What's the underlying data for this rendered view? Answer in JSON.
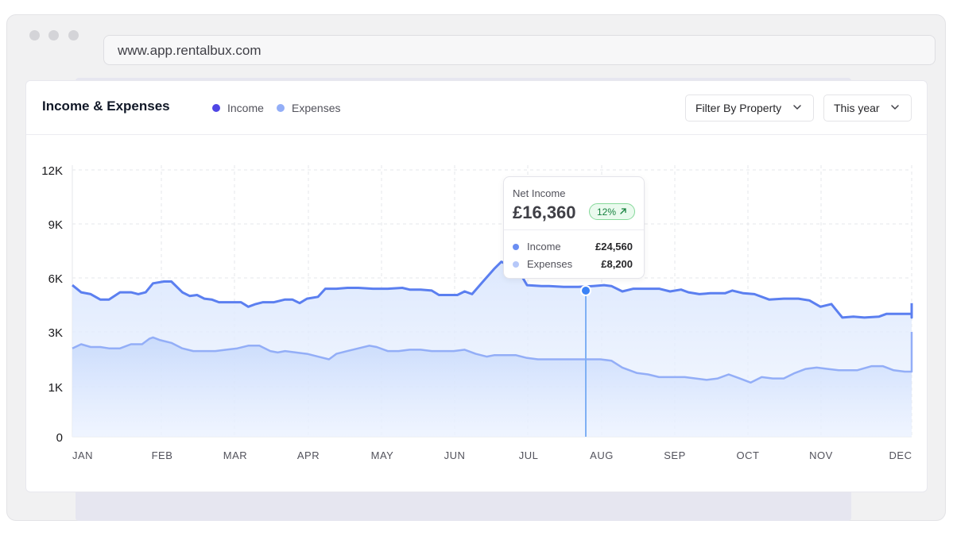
{
  "browser": {
    "url": "www.app.rentalbux.com"
  },
  "card": {
    "title": "Income & Expenses",
    "legend": [
      {
        "label": "Income",
        "color": "#4f46e5"
      },
      {
        "label": "Expenses",
        "color": "#93aef7"
      }
    ],
    "filter_property": "Filter By Property",
    "period": "This year"
  },
  "tooltip": {
    "label": "Net Income",
    "value": "£16,360",
    "change": "12%",
    "income_label": "Income",
    "income_value": "£24,560",
    "expenses_label": "Expenses",
    "expenses_value": "£8,200"
  },
  "chart_data": {
    "type": "area",
    "y_ticks": [
      "0",
      "1K",
      "3K",
      "6K",
      "9K",
      "12K"
    ],
    "x_ticks": [
      "JAN",
      "FEB",
      "MAR",
      "APR",
      "MAY",
      "JUN",
      "JUL",
      "AUG",
      "SEP",
      "OCT",
      "NOV",
      "DEC"
    ],
    "grid": true,
    "highlight_month": 7.35,
    "series": [
      {
        "name": "Income",
        "color": "#5b7ff0",
        "points": [
          [
            0,
            5600
          ],
          [
            0.12,
            5200
          ],
          [
            0.25,
            5100
          ],
          [
            0.38,
            4800
          ],
          [
            0.5,
            4800
          ],
          [
            0.65,
            5200
          ],
          [
            0.8,
            5200
          ],
          [
            0.9,
            5100
          ],
          [
            1.0,
            5200
          ],
          [
            1.1,
            5700
          ],
          [
            1.25,
            5800
          ],
          [
            1.35,
            5800
          ],
          [
            1.5,
            5200
          ],
          [
            1.6,
            5000
          ],
          [
            1.7,
            5050
          ],
          [
            1.8,
            4850
          ],
          [
            1.9,
            4800
          ],
          [
            2.0,
            4650
          ],
          [
            2.15,
            4650
          ],
          [
            2.3,
            4650
          ],
          [
            2.4,
            4400
          ],
          [
            2.5,
            4550
          ],
          [
            2.6,
            4650
          ],
          [
            2.75,
            4650
          ],
          [
            2.9,
            4800
          ],
          [
            3.0,
            4800
          ],
          [
            3.1,
            4600
          ],
          [
            3.2,
            4850
          ],
          [
            3.35,
            4950
          ],
          [
            3.45,
            5400
          ],
          [
            3.6,
            5400
          ],
          [
            3.75,
            5450
          ],
          [
            3.9,
            5450
          ],
          [
            4.1,
            5400
          ],
          [
            4.3,
            5400
          ],
          [
            4.5,
            5450
          ],
          [
            4.6,
            5350
          ],
          [
            4.75,
            5350
          ],
          [
            4.9,
            5300
          ],
          [
            5.0,
            5050
          ],
          [
            5.1,
            5050
          ],
          [
            5.25,
            5050
          ],
          [
            5.35,
            5250
          ],
          [
            5.45,
            5100
          ],
          [
            5.6,
            5800
          ],
          [
            5.75,
            6500
          ],
          [
            5.85,
            6900
          ],
          [
            6.0,
            6600
          ],
          [
            6.1,
            6300
          ],
          [
            6.2,
            5600
          ],
          [
            6.4,
            5550
          ],
          [
            6.5,
            5550
          ],
          [
            6.7,
            5500
          ],
          [
            6.9,
            5500
          ],
          [
            7.1,
            5550
          ],
          [
            7.25,
            5600
          ],
          [
            7.35,
            5550
          ],
          [
            7.5,
            5250
          ],
          [
            7.65,
            5400
          ],
          [
            7.8,
            5400
          ],
          [
            8.0,
            5400
          ],
          [
            8.15,
            5250
          ],
          [
            8.3,
            5350
          ],
          [
            8.4,
            5200
          ],
          [
            8.55,
            5100
          ],
          [
            8.7,
            5150
          ],
          [
            8.9,
            5150
          ],
          [
            9.0,
            5300
          ],
          [
            9.15,
            5150
          ],
          [
            9.3,
            5100
          ],
          [
            9.5,
            4800
          ],
          [
            9.7,
            4850
          ],
          [
            9.9,
            4850
          ],
          [
            10.05,
            4750
          ],
          [
            10.2,
            4400
          ],
          [
            10.35,
            4550
          ],
          [
            10.5,
            3800
          ],
          [
            10.65,
            3850
          ],
          [
            10.8,
            3800
          ],
          [
            11.0,
            3850
          ],
          [
            11.1,
            4000
          ],
          [
            11.3,
            4000
          ],
          [
            11.5,
            4000
          ],
          [
            11.65,
            3800
          ],
          [
            11.8,
            4250
          ],
          [
            11.95,
            4300
          ],
          [
            12.1,
            4600
          ],
          [
            12.25,
            4600
          ]
        ]
      },
      {
        "name": "Expenses",
        "color": "#93aef7",
        "points": [
          [
            0,
            2400
          ],
          [
            0.12,
            2550
          ],
          [
            0.25,
            2450
          ],
          [
            0.38,
            2450
          ],
          [
            0.5,
            2400
          ],
          [
            0.65,
            2400
          ],
          [
            0.8,
            2550
          ],
          [
            0.95,
            2550
          ],
          [
            1.05,
            2750
          ],
          [
            1.1,
            2800
          ],
          [
            1.2,
            2700
          ],
          [
            1.35,
            2600
          ],
          [
            1.5,
            2400
          ],
          [
            1.65,
            2300
          ],
          [
            1.8,
            2300
          ],
          [
            1.95,
            2300
          ],
          [
            2.1,
            2350
          ],
          [
            2.25,
            2400
          ],
          [
            2.4,
            2500
          ],
          [
            2.55,
            2500
          ],
          [
            2.7,
            2300
          ],
          [
            2.8,
            2250
          ],
          [
            2.9,
            2300
          ],
          [
            3.05,
            2250
          ],
          [
            3.2,
            2200
          ],
          [
            3.35,
            2100
          ],
          [
            3.5,
            2000
          ],
          [
            3.6,
            2200
          ],
          [
            3.75,
            2300
          ],
          [
            3.9,
            2400
          ],
          [
            4.05,
            2500
          ],
          [
            4.15,
            2450
          ],
          [
            4.3,
            2300
          ],
          [
            4.45,
            2300
          ],
          [
            4.6,
            2350
          ],
          [
            4.75,
            2350
          ],
          [
            4.9,
            2300
          ],
          [
            5.05,
            2300
          ],
          [
            5.2,
            2300
          ],
          [
            5.35,
            2350
          ],
          [
            5.5,
            2200
          ],
          [
            5.65,
            2100
          ],
          [
            5.75,
            2150
          ],
          [
            5.9,
            2150
          ],
          [
            6.05,
            2150
          ],
          [
            6.2,
            2050
          ],
          [
            6.35,
            2000
          ],
          [
            6.5,
            2000
          ],
          [
            6.7,
            2000
          ],
          [
            6.9,
            2000
          ],
          [
            7.05,
            2000
          ],
          [
            7.2,
            2000
          ],
          [
            7.35,
            1950
          ],
          [
            7.5,
            1700
          ],
          [
            7.7,
            1500
          ],
          [
            7.85,
            1450
          ],
          [
            8.0,
            1350
          ],
          [
            8.2,
            1350
          ],
          [
            8.35,
            1350
          ],
          [
            8.5,
            1300
          ],
          [
            8.65,
            1250
          ],
          [
            8.8,
            1300
          ],
          [
            8.95,
            1450
          ],
          [
            9.1,
            1300
          ],
          [
            9.25,
            1150
          ],
          [
            9.4,
            1350
          ],
          [
            9.55,
            1300
          ],
          [
            9.7,
            1300
          ],
          [
            9.85,
            1500
          ],
          [
            10.0,
            1650
          ],
          [
            10.15,
            1700
          ],
          [
            10.3,
            1650
          ],
          [
            10.45,
            1600
          ],
          [
            10.6,
            1600
          ],
          [
            10.7,
            1600
          ],
          [
            10.9,
            1750
          ],
          [
            11.05,
            1750
          ],
          [
            11.2,
            1600
          ],
          [
            11.35,
            1550
          ],
          [
            11.5,
            1550
          ],
          [
            11.65,
            1550
          ],
          [
            11.8,
            1650
          ],
          [
            11.95,
            2000
          ],
          [
            12.1,
            2500
          ],
          [
            12.25,
            3000
          ]
        ]
      }
    ]
  }
}
